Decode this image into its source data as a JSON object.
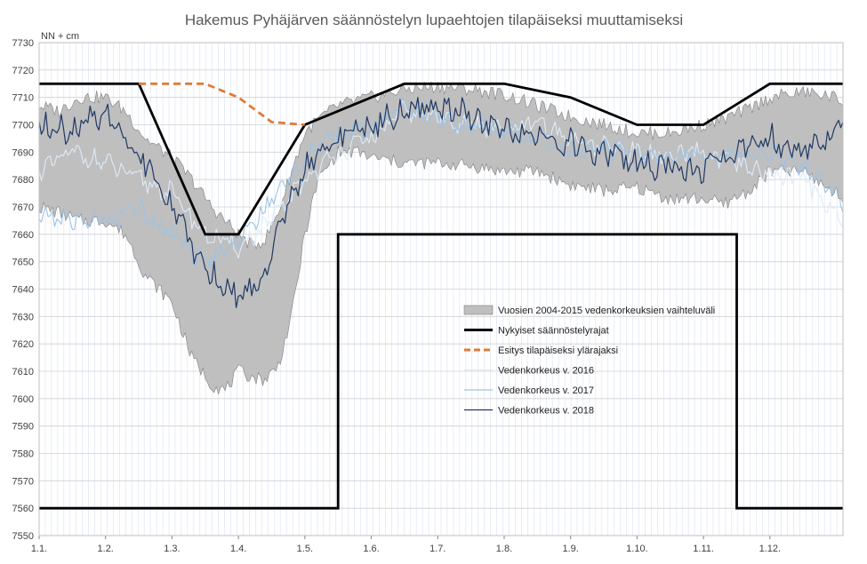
{
  "chart_data": {
    "type": "line",
    "title": "Hakemus Pyhäjärven säännöstelyn lupaehtojen tilapäiseksi muuttamiseksi",
    "ylabel": "NN + cm",
    "xlabel": "",
    "ylim": [
      7550,
      7730
    ],
    "yticks": [
      7550,
      7560,
      7570,
      7580,
      7590,
      7600,
      7610,
      7620,
      7630,
      7640,
      7650,
      7660,
      7670,
      7680,
      7690,
      7700,
      7710,
      7720,
      7730
    ],
    "xlim": [
      1,
      13.1
    ],
    "x_tick_labels": [
      "1.1.",
      "1.2.",
      "1.3.",
      "1.4.",
      "1.5.",
      "1.6.",
      "1.7.",
      "1.8.",
      "1.9.",
      "1.10.",
      "1.11.",
      "1.12."
    ],
    "grid": true,
    "legend_position": "center-right",
    "legend": [
      "Vuosien 2004-2015 vedenkorkeuksien vaihteluväli",
      "Nykyiset säännöstelyrajat",
      "Esitys tilapäiseksi ylärajaksi",
      "Vedenkorkeus v. 2016",
      "Vedenkorkeus v. 2017",
      "Vedenkorkeus v. 2018"
    ],
    "colors": {
      "range_fill": "#bfbfbf",
      "range_edge": "#7f7f7f",
      "limits": "#000000",
      "proposal": "#e07b39",
      "y2016": "#ddebf7",
      "y2017": "#9dc3e6",
      "y2018": "#1f3864",
      "grid": "#d9e1f2"
    },
    "series": [
      {
        "name": "Vuosien 2004-2015 vedenkorkeuksien vaihteluväli",
        "kind": "band",
        "x": [
          1.0,
          1.3,
          1.6,
          2.0,
          2.3,
          2.6,
          3.0,
          3.3,
          3.6,
          3.8,
          4.0,
          4.2,
          4.4,
          4.6,
          4.8,
          5.0,
          5.2,
          5.5,
          5.8,
          6.0,
          6.5,
          7.0,
          7.5,
          8.0,
          8.5,
          9.0,
          9.5,
          10.0,
          10.5,
          11.0,
          11.3,
          11.7,
          12.0,
          12.5,
          13.0,
          13.1
        ],
        "upper": [
          7707,
          7705,
          7710,
          7710,
          7705,
          7695,
          7688,
          7680,
          7670,
          7665,
          7660,
          7656,
          7658,
          7668,
          7683,
          7697,
          7702,
          7707,
          7709,
          7710,
          7713,
          7714,
          7713,
          7711,
          7707,
          7703,
          7700,
          7697,
          7697,
          7700,
          7702,
          7706,
          7710,
          7712,
          7710,
          7708
        ],
        "lower": [
          7670,
          7668,
          7665,
          7665,
          7660,
          7645,
          7635,
          7615,
          7605,
          7603,
          7610,
          7608,
          7607,
          7612,
          7630,
          7660,
          7680,
          7690,
          7690,
          7688,
          7686,
          7686,
          7685,
          7683,
          7683,
          7678,
          7676,
          7677,
          7673,
          7673,
          7671,
          7676,
          7683,
          7683,
          7675,
          7672
        ]
      },
      {
        "name": "Nykyiset säännöstelyrajat",
        "kind": "line",
        "segments": [
          {
            "x": [
              1.0,
              2.5,
              3.5,
              4.0,
              5.0,
              6.5,
              8.0,
              9.0,
              10.0,
              11.0,
              12.0,
              13.1
            ],
            "y": [
              7715,
              7715,
              7660,
              7660,
              7700,
              7715,
              7715,
              7710,
              7700,
              7700,
              7715,
              7715
            ]
          },
          {
            "x": [
              1.0,
              5.5,
              5.5,
              11.5,
              11.5,
              13.1
            ],
            "y": [
              7560,
              7560,
              7660,
              7660,
              7560,
              7560
            ]
          }
        ]
      },
      {
        "name": "Esitys tilapäiseksi ylärajaksi",
        "kind": "dashed",
        "x": [
          2.5,
          3.5,
          4.0,
          4.5,
          5.0
        ],
        "y": [
          7715,
          7715,
          7710,
          7701,
          7700
        ]
      },
      {
        "name": "Vedenkorkeus v. 2016",
        "kind": "line",
        "x": [
          1.0,
          1.5,
          2.0,
          2.5,
          3.0,
          3.5,
          4.0,
          4.5,
          5.0,
          5.5,
          6.0,
          6.5,
          7.0,
          7.5,
          8.0,
          8.5,
          9.0,
          9.5,
          10.0,
          10.5,
          11.0,
          11.5,
          12.0,
          12.5,
          13.0,
          13.1
        ],
        "y": [
          7683,
          7690,
          7686,
          7680,
          7675,
          7660,
          7655,
          7665,
          7680,
          7690,
          7695,
          7705,
          7703,
          7700,
          7698,
          7700,
          7695,
          7692,
          7690,
          7688,
          7690,
          7685,
          7682,
          7680,
          7668,
          7665
        ]
      },
      {
        "name": "Vedenkorkeus v. 2017",
        "kind": "line",
        "x": [
          1.0,
          1.5,
          2.0,
          2.5,
          3.0,
          3.5,
          4.0,
          4.5,
          5.0,
          5.5,
          6.0,
          6.5,
          7.0,
          7.5,
          8.0,
          8.5,
          9.0,
          9.5,
          10.0,
          10.5,
          11.0,
          11.5,
          12.0,
          12.5,
          13.0,
          13.1
        ],
        "y": [
          7667,
          7665,
          7665,
          7670,
          7660,
          7650,
          7658,
          7672,
          7688,
          7697,
          7700,
          7706,
          7702,
          7700,
          7697,
          7695,
          7690,
          7692,
          7690,
          7688,
          7690,
          7688,
          7690,
          7685,
          7675,
          7670
        ]
      },
      {
        "name": "Vedenkorkeus v. 2018",
        "kind": "line",
        "x": [
          1.0,
          1.5,
          2.0,
          2.5,
          3.0,
          3.3,
          3.5,
          3.8,
          4.0,
          4.3,
          4.6,
          5.0,
          5.5,
          6.0,
          6.5,
          7.0,
          7.5,
          8.0,
          8.5,
          9.0,
          9.5,
          10.0,
          10.5,
          11.0,
          11.5,
          12.0,
          12.5,
          13.0,
          13.1
        ],
        "y": [
          7700,
          7697,
          7705,
          7690,
          7670,
          7655,
          7648,
          7640,
          7638,
          7642,
          7660,
          7685,
          7695,
          7700,
          7705,
          7707,
          7703,
          7698,
          7695,
          7693,
          7690,
          7686,
          7685,
          7683,
          7690,
          7695,
          7690,
          7698,
          7702
        ]
      }
    ]
  }
}
